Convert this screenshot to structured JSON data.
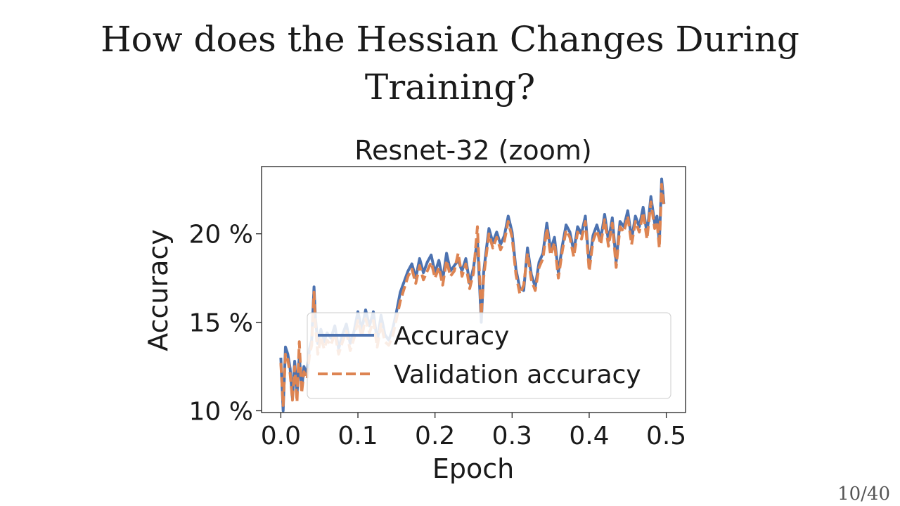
{
  "slide": {
    "title_line1": "How does the Hessian Changes During",
    "title_line2": "Training?",
    "page_number": "10/40"
  },
  "chart_data": {
    "type": "line",
    "title": "Resnet-32 (zoom)",
    "xlabel": "Epoch",
    "ylabel": "Accuracy",
    "xlim": [
      -0.025,
      0.525
    ],
    "ylim": [
      9.9,
      23.8
    ],
    "xticks": [
      0.0,
      0.1,
      0.2,
      0.3,
      0.4,
      0.5
    ],
    "xtick_labels": [
      "0.0",
      "0.1",
      "0.2",
      "0.3",
      "0.4",
      "0.5"
    ],
    "yticks": [
      10,
      15,
      20
    ],
    "ytick_labels": [
      "10 %",
      "15 %",
      "20 %"
    ],
    "grid": false,
    "legend_position": "lower-right",
    "series": [
      {
        "name": "Accuracy",
        "color": "#4c72b0",
        "style": "solid",
        "x": [
          0.0,
          0.003,
          0.006,
          0.009,
          0.012,
          0.015,
          0.018,
          0.021,
          0.024,
          0.027,
          0.03,
          0.034,
          0.037,
          0.04,
          0.043,
          0.045,
          0.048,
          0.052,
          0.056,
          0.06,
          0.065,
          0.07,
          0.075,
          0.08,
          0.085,
          0.09,
          0.095,
          0.1,
          0.105,
          0.11,
          0.115,
          0.12,
          0.125,
          0.13,
          0.135,
          0.14,
          0.145,
          0.15,
          0.155,
          0.16,
          0.165,
          0.17,
          0.175,
          0.18,
          0.185,
          0.19,
          0.195,
          0.2,
          0.205,
          0.21,
          0.215,
          0.22,
          0.225,
          0.23,
          0.235,
          0.24,
          0.245,
          0.25,
          0.255,
          0.26,
          0.263,
          0.266,
          0.27,
          0.275,
          0.28,
          0.285,
          0.29,
          0.295,
          0.3,
          0.305,
          0.31,
          0.315,
          0.32,
          0.325,
          0.33,
          0.335,
          0.34,
          0.345,
          0.35,
          0.355,
          0.36,
          0.365,
          0.37,
          0.375,
          0.38,
          0.385,
          0.39,
          0.395,
          0.4,
          0.405,
          0.41,
          0.415,
          0.42,
          0.425,
          0.43,
          0.435,
          0.44,
          0.445,
          0.45,
          0.455,
          0.46,
          0.465,
          0.47,
          0.475,
          0.48,
          0.485,
          0.488,
          0.491,
          0.494,
          0.497
        ],
        "values": [
          13.0,
          10.0,
          13.6,
          13.2,
          12.4,
          10.7,
          12.8,
          10.9,
          13.1,
          11.2,
          12.5,
          12.0,
          13.5,
          14.0,
          17.0,
          15.2,
          13.8,
          14.6,
          13.9,
          14.4,
          14.1,
          14.8,
          13.5,
          14.3,
          14.9,
          13.8,
          14.5,
          15.6,
          14.6,
          15.7,
          14.8,
          15.6,
          13.9,
          15.4,
          14.3,
          14.0,
          14.6,
          15.6,
          16.7,
          17.3,
          17.9,
          18.3,
          17.5,
          18.6,
          17.8,
          18.4,
          18.8,
          17.8,
          18.5,
          17.4,
          18.9,
          17.9,
          18.2,
          18.5,
          17.9,
          18.6,
          17.2,
          18.1,
          19.7,
          15.0,
          17.8,
          18.9,
          20.3,
          19.5,
          20.1,
          19.4,
          19.9,
          21.0,
          20.1,
          18.0,
          16.9,
          16.8,
          19.2,
          17.7,
          17.0,
          18.4,
          18.9,
          20.6,
          19.1,
          19.8,
          17.8,
          19.3,
          20.5,
          20.1,
          19.0,
          20.4,
          20.0,
          21.0,
          18.2,
          19.9,
          20.5,
          19.7,
          21.1,
          19.6,
          20.9,
          18.4,
          20.7,
          20.4,
          21.3,
          19.7,
          21.0,
          20.4,
          21.5,
          20.0,
          22.1,
          20.6,
          21.0,
          19.5,
          23.1,
          21.7
        ]
      },
      {
        "name": "Validation accuracy",
        "color": "#dd8452",
        "style": "dashed",
        "x": [
          0.0,
          0.003,
          0.006,
          0.009,
          0.012,
          0.015,
          0.018,
          0.021,
          0.024,
          0.027,
          0.03,
          0.034,
          0.037,
          0.04,
          0.043,
          0.045,
          0.048,
          0.052,
          0.056,
          0.06,
          0.065,
          0.07,
          0.075,
          0.08,
          0.085,
          0.09,
          0.095,
          0.1,
          0.105,
          0.11,
          0.115,
          0.12,
          0.125,
          0.13,
          0.135,
          0.14,
          0.145,
          0.15,
          0.155,
          0.16,
          0.165,
          0.17,
          0.175,
          0.18,
          0.185,
          0.19,
          0.195,
          0.2,
          0.205,
          0.21,
          0.215,
          0.22,
          0.225,
          0.23,
          0.235,
          0.24,
          0.245,
          0.25,
          0.255,
          0.26,
          0.263,
          0.266,
          0.27,
          0.275,
          0.28,
          0.285,
          0.29,
          0.295,
          0.3,
          0.305,
          0.31,
          0.315,
          0.32,
          0.325,
          0.33,
          0.335,
          0.34,
          0.345,
          0.35,
          0.355,
          0.36,
          0.365,
          0.37,
          0.375,
          0.38,
          0.385,
          0.39,
          0.395,
          0.4,
          0.405,
          0.41,
          0.415,
          0.42,
          0.425,
          0.43,
          0.435,
          0.44,
          0.445,
          0.45,
          0.455,
          0.46,
          0.465,
          0.47,
          0.475,
          0.48,
          0.485,
          0.488,
          0.491,
          0.494,
          0.497
        ],
        "values": [
          12.7,
          10.3,
          13.2,
          12.9,
          12.1,
          10.6,
          12.5,
          10.5,
          13.9,
          11.0,
          12.2,
          11.8,
          13.1,
          13.7,
          16.7,
          14.8,
          13.2,
          14.2,
          13.5,
          14.0,
          13.7,
          14.4,
          13.2,
          13.9,
          14.5,
          13.4,
          14.1,
          15.1,
          14.2,
          15.2,
          14.4,
          15.1,
          13.6,
          14.9,
          13.9,
          13.7,
          14.2,
          15.2,
          16.2,
          16.9,
          17.6,
          18.0,
          17.2,
          18.2,
          17.4,
          17.9,
          18.4,
          17.5,
          18.1,
          17.1,
          18.5,
          17.6,
          17.9,
          18.9,
          17.6,
          18.3,
          16.9,
          17.8,
          20.4,
          15.4,
          17.5,
          18.6,
          20.0,
          19.2,
          19.8,
          19.1,
          19.6,
          20.7,
          19.8,
          17.7,
          16.6,
          17.1,
          18.9,
          17.4,
          16.8,
          18.1,
          18.6,
          20.3,
          18.8,
          19.5,
          17.5,
          19.0,
          20.2,
          19.8,
          18.7,
          20.1,
          19.7,
          20.7,
          17.9,
          19.6,
          20.2,
          19.4,
          20.8,
          19.3,
          20.6,
          18.1,
          20.4,
          20.1,
          21.0,
          19.4,
          20.7,
          20.1,
          21.2,
          19.7,
          21.8,
          20.3,
          20.7,
          19.2,
          22.8,
          21.5
        ]
      }
    ]
  }
}
